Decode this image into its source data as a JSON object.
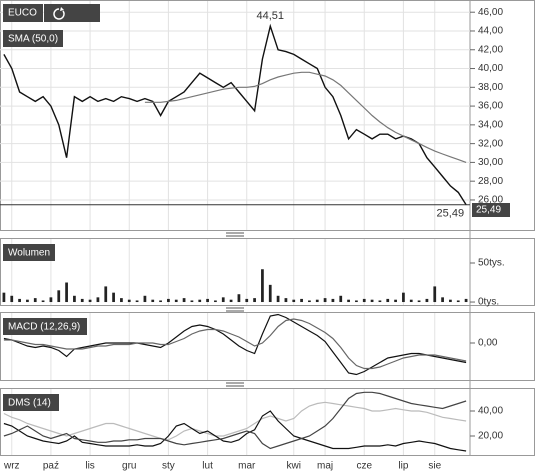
{
  "chart_data": [
    {
      "type": "line",
      "title": "EUCO",
      "indicator": "SMA (50,0)",
      "grid": true,
      "ylim": [
        22.8,
        47.3
      ],
      "yticks": [
        {
          "value": 26,
          "label": "26,00"
        },
        {
          "value": 28,
          "label": "28,00"
        },
        {
          "value": 30,
          "label": "30,00"
        },
        {
          "value": 32,
          "label": "32,00"
        },
        {
          "value": 34,
          "label": "34,00"
        },
        {
          "value": 36,
          "label": "36,00"
        },
        {
          "value": 38,
          "label": "38,00"
        },
        {
          "value": 40,
          "label": "40,00"
        },
        {
          "value": 42,
          "label": "42,00"
        },
        {
          "value": 44,
          "label": "44,00"
        },
        {
          "value": 46,
          "label": "46,00"
        }
      ],
      "last_label": "25,49",
      "series": [
        {
          "color": "#111111",
          "values": [
            41.5,
            40,
            37.5,
            37,
            36.5,
            37,
            36,
            34,
            30.5,
            37,
            36.5,
            37,
            36.5,
            36.8,
            36.5,
            37,
            36.8,
            36.5,
            36.8,
            36.5,
            35,
            36.5,
            37,
            37.5,
            38.5,
            39.5,
            39,
            38.5,
            38,
            38.5,
            37.5,
            36.5,
            35.5,
            41,
            44.51,
            42,
            41.8,
            41.5,
            41,
            40.5,
            40,
            38,
            37,
            35,
            32.5,
            33.5,
            33,
            32.5,
            33,
            33,
            32.5,
            32.8,
            32.5,
            32,
            30.5,
            29.5,
            28.5,
            27.5,
            26.8,
            25.49
          ],
          "value_labels": [
            null,
            null,
            null,
            null,
            null,
            null,
            null,
            null,
            null,
            null,
            null,
            null,
            null,
            null,
            null,
            null,
            null,
            null,
            null,
            null,
            null,
            null,
            null,
            null,
            null,
            null,
            null,
            null,
            null,
            null,
            null,
            null,
            null,
            null,
            "44,51",
            null,
            null,
            null,
            null,
            null,
            null,
            null,
            null,
            null,
            null,
            null,
            null,
            null,
            null,
            null,
            null,
            null,
            null,
            null,
            null,
            null,
            null,
            null,
            null,
            "25,49"
          ]
        },
        {
          "color": "#777777",
          "values": [
            null,
            null,
            null,
            null,
            null,
            null,
            null,
            null,
            null,
            null,
            null,
            null,
            null,
            null,
            null,
            null,
            null,
            null,
            36.4,
            36.4,
            36.4,
            36.5,
            36.6,
            36.8,
            37,
            37.2,
            37.4,
            37.6,
            37.8,
            37.9,
            38,
            38,
            38.1,
            38.4,
            38.8,
            39.1,
            39.3,
            39.5,
            39.6,
            39.6,
            39.4,
            39.2,
            38.8,
            38.2,
            37.4,
            36.6,
            35.8,
            35,
            34.3,
            33.7,
            33.2,
            32.8,
            32.4,
            32,
            31.6,
            31.2,
            30.9,
            30.6,
            30.3,
            30
          ]
        }
      ]
    },
    {
      "type": "bar",
      "title": "Wolumen",
      "color": "#222222",
      "ylim": [
        -3800,
        82000
      ],
      "yticks": [
        {
          "value": 0,
          "label": "0tys."
        },
        {
          "value": 50000,
          "label": "50tys."
        }
      ],
      "values": [
        12000,
        8000,
        4000,
        3000,
        5000,
        2000,
        6000,
        15000,
        25000,
        8000,
        4000,
        3000,
        6000,
        20000,
        12000,
        5000,
        3000,
        2000,
        8000,
        3000,
        2000,
        4000,
        3000,
        5000,
        2000,
        3000,
        4000,
        2000,
        6000,
        3000,
        10000,
        4000,
        5000,
        42000,
        22000,
        8000,
        5000,
        3000,
        4000,
        2000,
        3000,
        5000,
        4000,
        8000,
        3000,
        2000,
        4000,
        3000,
        2000,
        4000,
        3000,
        12000,
        3000,
        2000,
        4000,
        20000,
        6000,
        3000,
        2000,
        4000
      ]
    },
    {
      "type": "line",
      "title": "MACD (12,26,9)",
      "ylim": [
        -2.47,
        2.07
      ],
      "yticks": [
        {
          "value": 0,
          "label": "0,00"
        }
      ],
      "series": [
        {
          "color": "#111111",
          "values": [
            0.3,
            0.2,
            0,
            -0.2,
            -0.3,
            -0.2,
            -0.3,
            -0.5,
            -0.9,
            -0.4,
            -0.3,
            -0.2,
            -0.1,
            0,
            0,
            0,
            0,
            0,
            -0.1,
            -0.2,
            -0.3,
            0,
            0.4,
            0.8,
            1.1,
            1.2,
            1.1,
            0.9,
            0.6,
            0.2,
            -0.2,
            -0.5,
            -0.7,
            0.6,
            1.8,
            1.9,
            1.7,
            1.4,
            1.1,
            0.8,
            0.5,
            0.1,
            -0.6,
            -1.3,
            -2,
            -2.1,
            -1.9,
            -1.6,
            -1.3,
            -1.0,
            -0.9,
            -0.8,
            -0.7,
            -0.7,
            -0.8,
            -0.9,
            -1.0,
            -1.1,
            -1.2,
            -1.3
          ]
        },
        {
          "color": "#666666",
          "values": [
            0.2,
            0.2,
            0.1,
            0,
            -0.1,
            -0.1,
            -0.2,
            -0.3,
            -0.4,
            -0.4,
            -0.4,
            -0.3,
            -0.2,
            -0.2,
            -0.1,
            -0.1,
            -0.1,
            0,
            0,
            0,
            -0.1,
            -0.1,
            0.1,
            0.3,
            0.6,
            0.8,
            0.9,
            0.9,
            0.8,
            0.6,
            0.4,
            0.1,
            -0.2,
            0,
            0.5,
            1.1,
            1.5,
            1.6,
            1.5,
            1.3,
            1.0,
            0.7,
            0.3,
            -0.3,
            -1,
            -1.5,
            -1.7,
            -1.7,
            -1.6,
            -1.4,
            -1.2,
            -1.0,
            -0.9,
            -0.8,
            -0.8,
            -0.8,
            -0.9,
            -1.0,
            -1.1,
            -1.2
          ]
        }
      ]
    },
    {
      "type": "line",
      "title": "DMS (14)",
      "ylim": [
        4.8,
        58.4
      ],
      "yticks": [
        {
          "value": 20,
          "label": "20,00"
        },
        {
          "value": 40,
          "label": "40,00"
        }
      ],
      "categories": [
        null,
        "wrz",
        null,
        null,
        null,
        null,
        "paź",
        null,
        null,
        null,
        null,
        "lis",
        null,
        null,
        null,
        null,
        "gru",
        null,
        null,
        null,
        null,
        "sty",
        null,
        null,
        null,
        null,
        "lut",
        null,
        null,
        null,
        null,
        "mar",
        null,
        null,
        null,
        null,
        null,
        "kwi",
        null,
        null,
        null,
        "maj",
        null,
        null,
        null,
        null,
        "cze",
        null,
        null,
        null,
        null,
        "lip",
        null,
        null,
        null,
        "sie",
        null,
        null,
        null,
        null
      ],
      "series": [
        {
          "color": "#bbbbbb",
          "values": [
            38,
            35,
            33,
            30,
            28,
            26,
            24,
            22,
            20,
            22,
            24,
            26,
            28,
            30,
            30,
            28,
            26,
            24,
            22,
            20,
            18,
            17,
            20,
            24,
            26,
            24,
            22,
            20,
            20,
            22,
            24,
            26,
            30,
            34,
            36,
            34,
            32,
            34,
            40,
            44,
            46,
            47,
            46,
            45,
            44,
            43,
            42,
            40,
            40,
            41,
            42,
            41,
            40,
            40,
            39,
            37,
            35,
            34,
            33,
            32
          ]
        },
        {
          "color": "#111111",
          "values": [
            30,
            28,
            24,
            20,
            18,
            16,
            15,
            14,
            16,
            20,
            15,
            14,
            13,
            12,
            12,
            12,
            12,
            13,
            12,
            12,
            14,
            20,
            28,
            30,
            26,
            22,
            24,
            20,
            16,
            15,
            17,
            22,
            25,
            36,
            40,
            32,
            26,
            20,
            18,
            16,
            14,
            12,
            10,
            10,
            10,
            11,
            12,
            12,
            12,
            13,
            12,
            14,
            15,
            16,
            15,
            14,
            12,
            10,
            9,
            8
          ]
        },
        {
          "color": "#444444",
          "values": [
            20,
            22,
            25,
            28,
            24,
            20,
            18,
            20,
            22,
            18,
            17,
            16,
            15,
            15,
            16,
            16,
            17,
            17,
            18,
            18,
            18,
            16,
            14,
            13,
            14,
            15,
            16,
            17,
            18,
            20,
            22,
            24,
            22,
            14,
            10,
            12,
            14,
            16,
            18,
            20,
            24,
            28,
            34,
            42,
            50,
            54,
            55,
            55,
            54,
            52,
            50,
            48,
            46,
            45,
            44,
            43,
            42,
            44,
            46,
            48
          ]
        }
      ]
    }
  ]
}
